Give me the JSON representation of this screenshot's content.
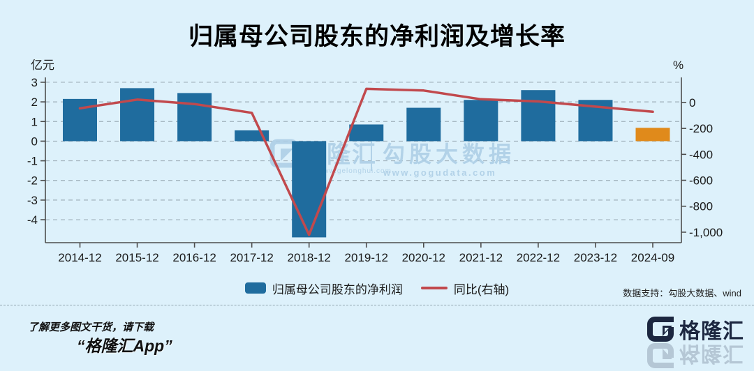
{
  "title": "归属母公司股东的净利润及增长率",
  "chart_data": {
    "type": "bar",
    "categories": [
      "2014-12",
      "2015-12",
      "2016-12",
      "2017-12",
      "2018-12",
      "2019-12",
      "2020-12",
      "2021-12",
      "2022-12",
      "2023-12",
      "2024-09"
    ],
    "series": [
      {
        "name": "归属母公司股东的净利润",
        "type": "bar",
        "axis": "left",
        "values": [
          2.15,
          2.7,
          2.45,
          0.55,
          -4.9,
          0.85,
          1.7,
          2.1,
          2.6,
          2.1,
          0.68
        ]
      },
      {
        "name": "同比(右轴)",
        "type": "line",
        "axis": "right",
        "values": [
          -45,
          22,
          -12,
          -80,
          -1020,
          105,
          92,
          25,
          8,
          -32,
          -72
        ]
      }
    ],
    "left_axis": {
      "label": "亿元",
      "ticks": [
        3,
        2,
        1,
        0,
        -1,
        -2,
        -3,
        -4
      ],
      "min": -5.17,
      "max": 3.14
    },
    "right_axis": {
      "label": "%",
      "ticks": [
        "0",
        "-200",
        "-400",
        "-600",
        "-800",
        "-1,000"
      ],
      "tick_values": [
        0,
        -200,
        -400,
        -600,
        -800,
        -1000
      ],
      "min": -1081,
      "max": 177
    },
    "grid": "horizontal dashed",
    "legend_position": "bottom center",
    "bar_color": "#1f6c9e",
    "highlight_bar_color": "#e08a1b",
    "highlight_index": 10,
    "line_color": "#c1494d"
  },
  "legend": {
    "bar_label": "归属母公司股东的净利润",
    "line_label": "同比(右轴)"
  },
  "watermark": {
    "brand": "格隆汇",
    "brand_url": "www.gelonghui.com",
    "source": "勾股大数据",
    "source_url": "www.gogudata.com"
  },
  "data_support": "数据支持：勾股大数据、wind",
  "footer": {
    "line1": "了解更多图文干货，请下载",
    "line2": "“格隆汇App”",
    "brand_name": "格隆汇"
  },
  "colors": {
    "background": "#ddf1fb",
    "grid": "#9fb0ba",
    "axis": "#4d4d4d",
    "watermark": "#aecfe6",
    "brand_logo": "#1c2740"
  }
}
